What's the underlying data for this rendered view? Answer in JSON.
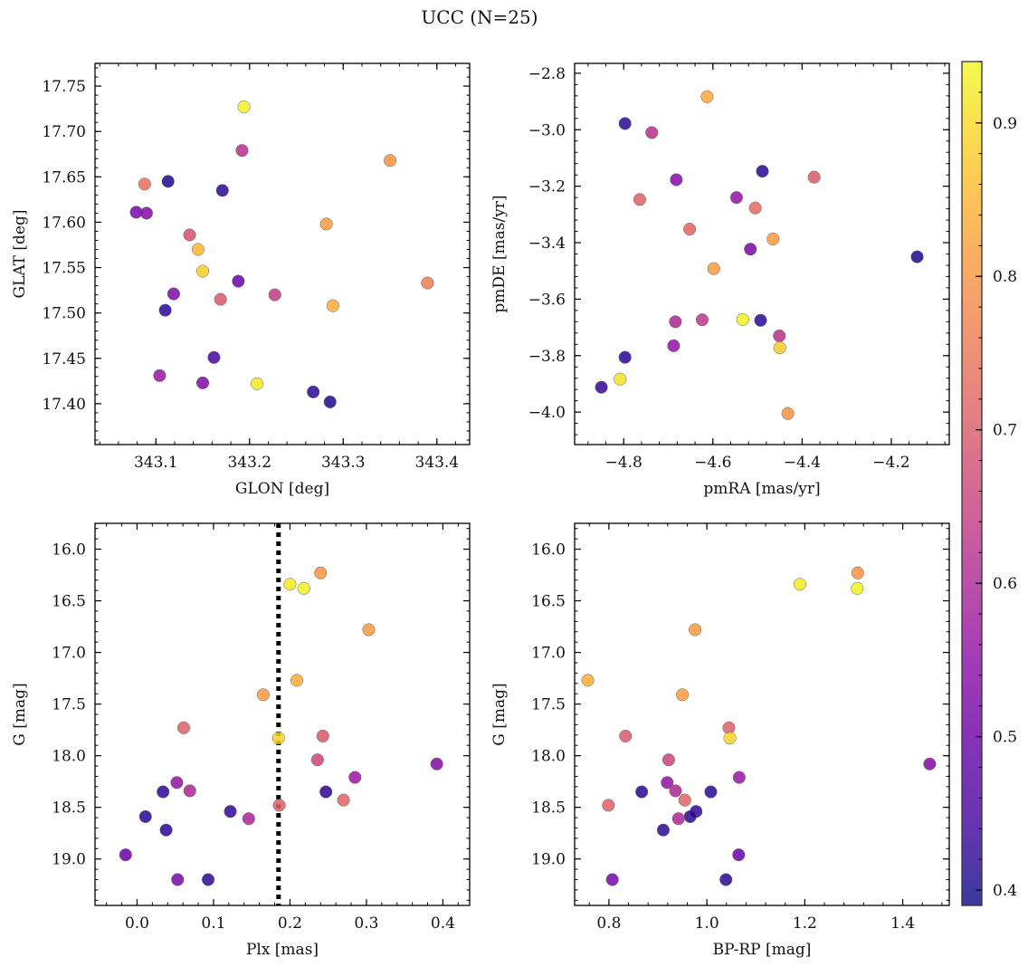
{
  "figure": {
    "title": "UCC (N=25)",
    "colorbar": {
      "colormap": "plasma",
      "range": [
        0.39,
        0.94
      ],
      "ticks": [
        "0.4",
        "0.5",
        "0.6",
        "0.7",
        "0.8",
        "0.9"
      ]
    }
  },
  "chart_data": [
    {
      "type": "scatter",
      "name": "glon-glat",
      "xlabel": "GLON [deg]",
      "ylabel": "GLAT [deg]",
      "xlim": [
        343.035,
        343.435
      ],
      "ylim": [
        17.355,
        17.775
      ],
      "xticks": [
        "343.1",
        "343.2",
        "343.3",
        "343.4"
      ],
      "yticks": [
        "17.40",
        "17.45",
        "17.50",
        "17.55",
        "17.60",
        "17.65",
        "17.70",
        "17.75"
      ],
      "x": [
        343.194,
        343.192,
        343.35,
        343.088,
        343.113,
        343.171,
        343.079,
        343.09,
        343.136,
        343.282,
        343.145,
        343.15,
        343.119,
        343.188,
        343.169,
        343.227,
        343.289,
        343.39,
        343.11,
        343.162,
        343.104,
        343.15,
        343.208,
        343.268,
        343.286
      ],
      "y": [
        17.727,
        17.679,
        17.668,
        17.642,
        17.645,
        17.635,
        17.611,
        17.61,
        17.586,
        17.598,
        17.57,
        17.546,
        17.521,
        17.535,
        17.515,
        17.52,
        17.508,
        17.533,
        17.503,
        17.451,
        17.431,
        17.423,
        17.422,
        17.413,
        17.402
      ],
      "color": [
        0.93,
        0.62,
        0.8,
        0.74,
        0.41,
        0.42,
        0.52,
        0.54,
        0.68,
        0.81,
        0.85,
        0.88,
        0.53,
        0.5,
        0.7,
        0.64,
        0.84,
        0.76,
        0.42,
        0.45,
        0.57,
        0.53,
        0.92,
        0.42,
        0.41
      ]
    },
    {
      "type": "scatter",
      "name": "pmra-pmde",
      "xlabel": "pmRA [mas/yr]",
      "ylabel": "pmDE [mas/yr]",
      "xlim": [
        -4.91,
        -4.07
      ],
      "ylim": [
        -4.115,
        -2.765
      ],
      "xticks": [
        "−4.8",
        "−4.6",
        "−4.4",
        "−4.2"
      ],
      "yticks": [
        "−4.0",
        "−3.8",
        "−3.6",
        "−3.4",
        "−3.2",
        "−3.0",
        "−2.8"
      ],
      "x": [
        -4.613,
        -4.797,
        -4.737,
        -4.489,
        -4.373,
        -4.682,
        -4.764,
        -4.547,
        -4.505,
        -4.652,
        -4.465,
        -4.516,
        -4.598,
        -4.142,
        -4.533,
        -4.493,
        -4.684,
        -4.624,
        -4.451,
        -4.688,
        -4.45,
        -4.797,
        -4.808,
        -4.85,
        -4.432
      ],
      "y": [
        -2.883,
        -2.978,
        -3.01,
        -3.147,
        -3.168,
        -3.177,
        -3.247,
        -3.24,
        -3.277,
        -3.352,
        -3.387,
        -3.423,
        -3.492,
        -3.45,
        -3.672,
        -3.675,
        -3.68,
        -3.673,
        -3.73,
        -3.765,
        -3.772,
        -3.806,
        -3.883,
        -3.912,
        -4.005
      ],
      "color": [
        0.83,
        0.42,
        0.62,
        0.42,
        0.7,
        0.54,
        0.71,
        0.56,
        0.73,
        0.72,
        0.81,
        0.52,
        0.81,
        0.41,
        0.93,
        0.42,
        0.6,
        0.63,
        0.62,
        0.56,
        0.88,
        0.42,
        0.91,
        0.43,
        0.8
      ]
    },
    {
      "type": "scatter",
      "name": "plx-g",
      "xlabel": "Plx [mas]",
      "ylabel": "G [mag]",
      "xlim": [
        -0.055,
        0.435
      ],
      "ylim": [
        19.45,
        15.75
      ],
      "y_inverted": true,
      "xticks": [
        "0.0",
        "0.1",
        "0.2",
        "0.3",
        "0.4"
      ],
      "yticks": [
        "16.0",
        "16.5",
        "17.0",
        "17.5",
        "18.0",
        "18.5",
        "19.0"
      ],
      "vline": 0.185,
      "x": [
        0.24,
        0.2,
        0.218,
        0.303,
        0.209,
        0.165,
        0.061,
        0.185,
        0.243,
        0.236,
        0.285,
        0.392,
        0.052,
        0.069,
        0.034,
        0.247,
        0.186,
        0.27,
        0.122,
        0.011,
        0.146,
        0.038,
        -0.015,
        0.053,
        0.093
      ],
      "y": [
        16.23,
        16.34,
        16.38,
        16.78,
        17.27,
        17.41,
        17.73,
        17.83,
        17.81,
        18.04,
        18.21,
        18.08,
        18.26,
        18.34,
        18.35,
        18.35,
        18.48,
        18.43,
        18.54,
        18.59,
        18.61,
        18.72,
        18.96,
        19.2,
        19.2
      ],
      "color": [
        0.8,
        0.92,
        0.93,
        0.81,
        0.84,
        0.81,
        0.71,
        0.89,
        0.7,
        0.66,
        0.57,
        0.54,
        0.56,
        0.6,
        0.42,
        0.42,
        0.71,
        0.72,
        0.43,
        0.42,
        0.6,
        0.42,
        0.5,
        0.52,
        0.42
      ]
    },
    {
      "type": "scatter",
      "name": "bprp-g",
      "xlabel": "BP-RP [mag]",
      "ylabel": "G [mag]",
      "xlim": [
        0.73,
        1.495
      ],
      "ylim": [
        19.45,
        15.75
      ],
      "y_inverted": true,
      "xticks": [
        "0.8",
        "1.0",
        "1.2",
        "1.4"
      ],
      "yticks": [
        "16.0",
        "16.5",
        "17.0",
        "17.5",
        "18.0",
        "18.5",
        "19.0"
      ],
      "x": [
        1.308,
        1.19,
        1.307,
        0.976,
        0.757,
        0.95,
        1.045,
        1.047,
        0.834,
        0.922,
        1.066,
        1.455,
        0.919,
        0.936,
        0.867,
        1.008,
        0.799,
        0.955,
        0.978,
        0.966,
        0.942,
        0.911,
        1.065,
        0.807,
        1.039
      ],
      "y": [
        16.23,
        16.34,
        16.38,
        16.78,
        17.27,
        17.41,
        17.73,
        17.83,
        17.81,
        18.04,
        18.21,
        18.08,
        18.26,
        18.34,
        18.35,
        18.35,
        18.48,
        18.43,
        18.54,
        18.59,
        18.61,
        18.72,
        18.96,
        19.2,
        19.2
      ],
      "color": [
        0.8,
        0.92,
        0.93,
        0.81,
        0.84,
        0.81,
        0.71,
        0.89,
        0.7,
        0.66,
        0.57,
        0.54,
        0.56,
        0.6,
        0.42,
        0.42,
        0.71,
        0.72,
        0.43,
        0.42,
        0.6,
        0.42,
        0.5,
        0.52,
        0.42
      ]
    }
  ]
}
